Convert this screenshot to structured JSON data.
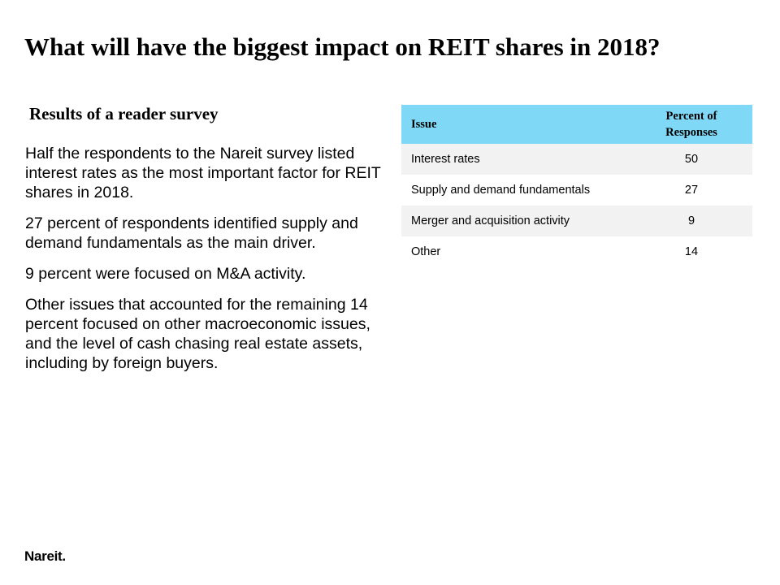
{
  "slide": {
    "title": "What will have the biggest impact on REIT shares in 2018?",
    "subtitle": "Results of a reader survey",
    "paragraphs": [
      "Half the respondents to the Nareit survey listed interest rates as the most important factor for REIT shares in 2018.",
      "27 percent of respondents identified supply and demand fundamentals as the main driver.",
      "9 percent were focused on M&A activity.",
      "Other issues that accounted for the remaining 14 percent focused on other macroeconomic issues, and the level of cash chasing real estate assets, including by foreign buyers."
    ],
    "logo_text": "Nareit."
  },
  "table": {
    "headers": [
      "Issue",
      "Percent of Responses"
    ],
    "rows": [
      {
        "issue": "Interest  rates",
        "percent": "50"
      },
      {
        "issue": "Supply and demand fundamentals",
        "percent": "27"
      },
      {
        "issue": "Merger and acquisition activity",
        "percent": "9"
      },
      {
        "issue": "Other",
        "percent": "14"
      }
    ],
    "colors": {
      "header_bg": "#7fd9f6",
      "row_shade": "#f2f2f2"
    }
  }
}
